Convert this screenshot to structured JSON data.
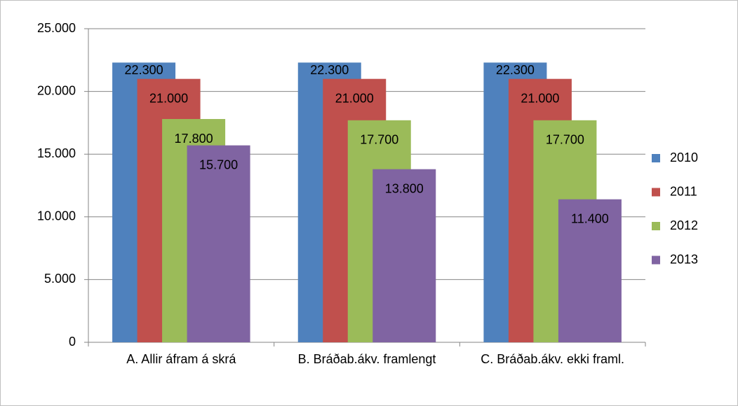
{
  "chart_data": {
    "type": "bar",
    "categories": [
      "A. Allir áfram á skrá",
      "B. Bráðab.ákv. framlengt",
      "C. Bráðab.ákv. ekki framl."
    ],
    "series": [
      {
        "name": "2010",
        "color": "#4f81bd",
        "values": [
          22300,
          22300,
          22300
        ],
        "value_labels": [
          "22.300",
          "22.300",
          "22.300"
        ]
      },
      {
        "name": "2011",
        "color": "#c0504d",
        "values": [
          21000,
          21000,
          21000
        ],
        "value_labels": [
          "21.000",
          "21.000",
          "21.000"
        ]
      },
      {
        "name": "2012",
        "color": "#9bbb59",
        "values": [
          17800,
          17700,
          17700
        ],
        "value_labels": [
          "17.800",
          "17.700",
          "17.700"
        ]
      },
      {
        "name": "2013",
        "color": "#8064a2",
        "values": [
          15700,
          13800,
          11400
        ],
        "value_labels": [
          "15.700",
          "13.800",
          "11.400"
        ]
      }
    ],
    "ylim": [
      0,
      25000
    ],
    "yticks": [
      0,
      {
        "value": 5000,
        "label": "5.000"
      },
      {
        "value": 10000,
        "label": "10.000"
      },
      {
        "value": 15000,
        "label": "15.000"
      },
      {
        "value": 20000,
        "label": "20.000"
      },
      {
        "value": 25000,
        "label": "25.000"
      }
    ],
    "grid": true,
    "legend": "right"
  }
}
